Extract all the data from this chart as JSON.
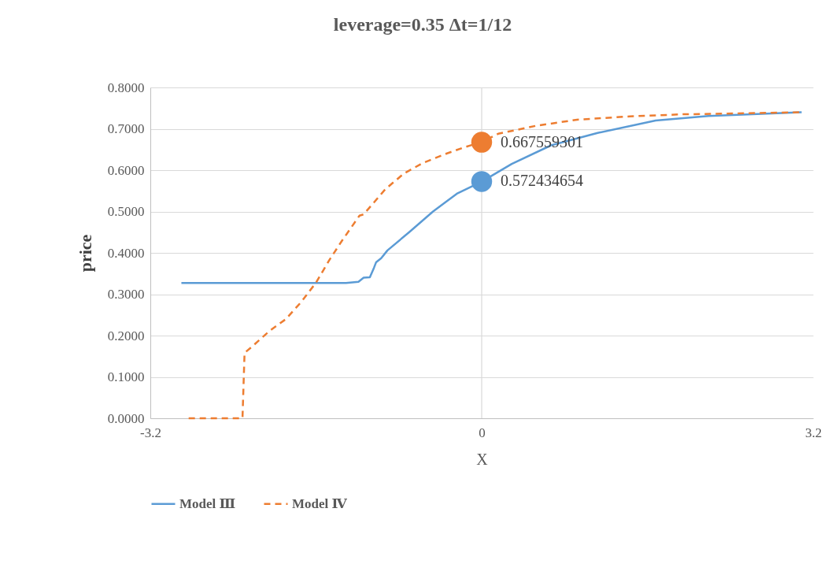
{
  "chart_data": {
    "type": "line",
    "title": "leverage=0.35   Δt=1/12",
    "xlabel": "X",
    "ylabel": "price",
    "xlim": [
      -3.2,
      3.2
    ],
    "xticks": [
      -3.2,
      0,
      3.2
    ],
    "ylim": [
      0,
      0.8
    ],
    "yticks": [
      {
        "value": 0,
        "label": "0.0000"
      },
      {
        "value": 0.1,
        "label": "0.1000"
      },
      {
        "value": 0.2,
        "label": "0.2000"
      },
      {
        "value": 0.3,
        "label": "0.3000"
      },
      {
        "value": 0.4,
        "label": "0.4000"
      },
      {
        "value": 0.5,
        "label": "0.5000"
      },
      {
        "value": 0.6,
        "label": "0.6000"
      },
      {
        "value": 0.7,
        "label": "0.7000"
      },
      {
        "value": 0.8,
        "label": "0.8000"
      }
    ],
    "grid": "y",
    "legend": "bottom",
    "ref_lines": [
      {
        "axis": "x",
        "value": 0,
        "color": "#d9d9d9"
      }
    ],
    "series": [
      {
        "name": "Model Ⅲ",
        "line_style": "solid",
        "color": "#5b9bd5",
        "x": [
          -2.9,
          -1.31,
          -1.19,
          -1.14,
          -1.08,
          -1.04,
          -1.02,
          -0.97,
          -0.91,
          -0.7,
          -0.47,
          -0.24,
          0,
          0.29,
          0.67,
          1.12,
          1.68,
          2.19,
          3.09
        ],
        "values": [
          0.327,
          0.327,
          0.33,
          0.34,
          0.341,
          0.364,
          0.377,
          0.387,
          0.406,
          0.45,
          0.5,
          0.543,
          0.572,
          0.615,
          0.66,
          0.69,
          0.72,
          0.731,
          0.74
        ]
      },
      {
        "name": "Model Ⅳ",
        "line_style": "dashed",
        "color": "#ed7d31",
        "x": [
          -2.83,
          -2.31,
          -2.29,
          -2.21,
          -2.05,
          -1.89,
          -1.74,
          -1.6,
          -1.47,
          -1.35,
          -1.18,
          -1.14,
          -1.04,
          -0.93,
          -0.75,
          -0.57,
          -0.34,
          -0.17,
          0,
          0.16,
          0.52,
          0.92,
          1.43,
          1.94,
          3.08
        ],
        "values": [
          0,
          0,
          0.158,
          0.175,
          0.211,
          0.24,
          0.282,
          0.328,
          0.383,
          0.429,
          0.49,
          0.493,
          0.522,
          0.554,
          0.592,
          0.617,
          0.64,
          0.655,
          0.668,
          0.688,
          0.707,
          0.722,
          0.73,
          0.735,
          0.74
        ]
      },
      {
        "type": "scatter",
        "marker": "circle",
        "color": "#ed7d31",
        "x": [
          0
        ],
        "values": [
          0.667559301
        ],
        "value_labels": [
          "0.667559301"
        ]
      },
      {
        "type": "scatter",
        "marker": "circle",
        "color": "#5b9bd5",
        "x": [
          0
        ],
        "values": [
          0.572434654
        ],
        "value_labels": [
          "0.572434654"
        ]
      }
    ]
  }
}
